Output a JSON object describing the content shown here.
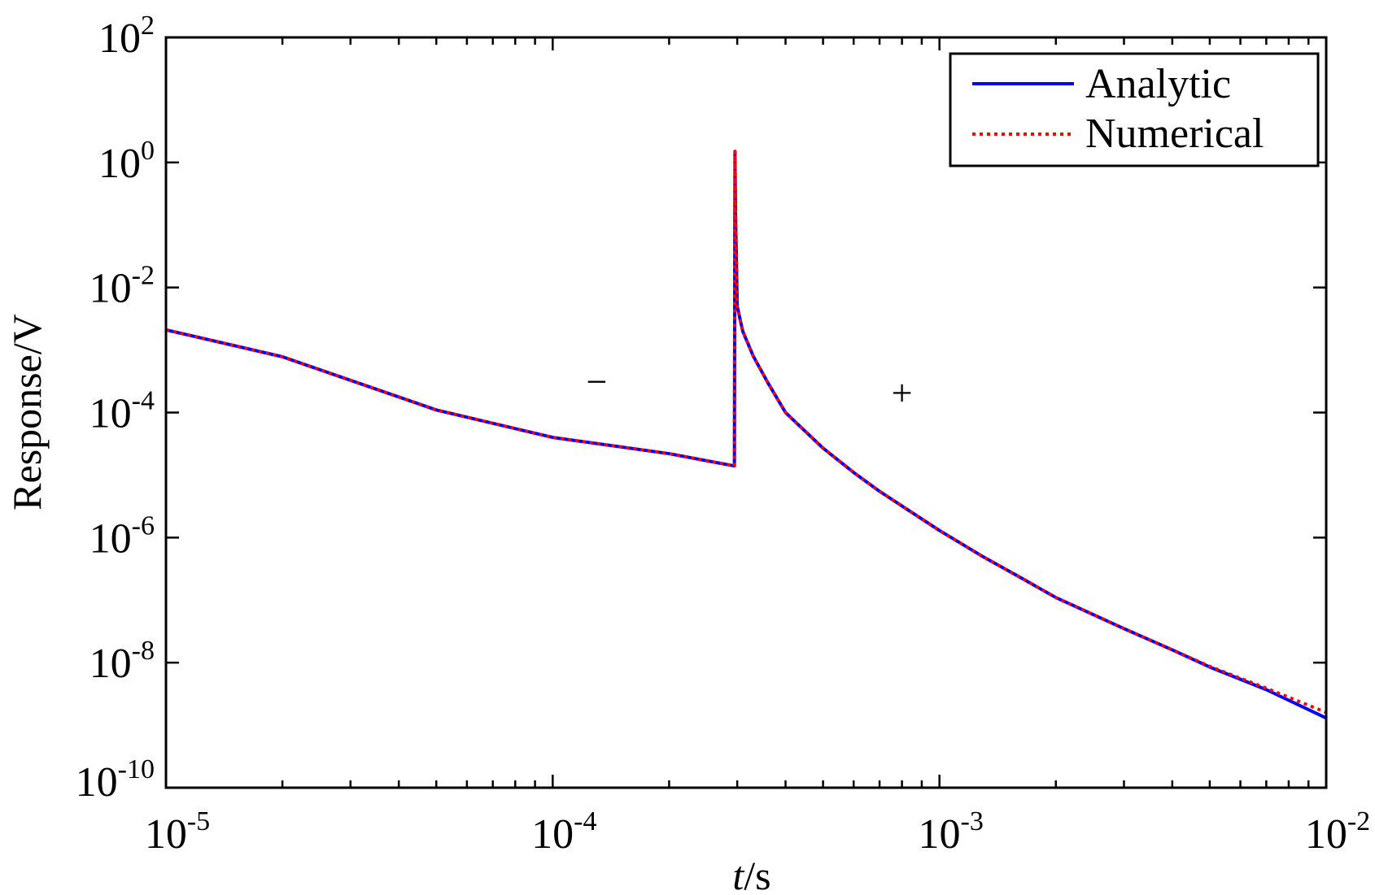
{
  "chart_data": {
    "type": "line",
    "title": "",
    "xlabel_italic": "t",
    "xlabel_unit": "/s",
    "ylabel": "Response/V",
    "xscale": "log",
    "yscale": "log",
    "xlim": [
      1e-05,
      0.01
    ],
    "ylim": [
      1e-10,
      100
    ],
    "grid": false,
    "legend_position": "top-right",
    "x_ticks": [
      {
        "base": "10",
        "exp": "-5"
      },
      {
        "base": "10",
        "exp": "-4"
      },
      {
        "base": "10",
        "exp": "-3"
      },
      {
        "base": "10",
        "exp": "-2"
      }
    ],
    "y_ticks": [
      {
        "base": "10",
        "exp": "-10"
      },
      {
        "base": "10",
        "exp": "-8"
      },
      {
        "base": "10",
        "exp": "-6"
      },
      {
        "base": "10",
        "exp": "-4"
      },
      {
        "base": "10",
        "exp": "-2"
      },
      {
        "base": "10",
        "exp": "0"
      },
      {
        "base": "10",
        "exp": "2"
      }
    ],
    "annotations": [
      {
        "text": "−",
        "x": 0.00013,
        "y": 0.0003
      },
      {
        "text": "+",
        "x": 0.0008,
        "y": 0.0002
      }
    ],
    "series": [
      {
        "name": "Analytic",
        "color": "#0000ff",
        "style": "solid",
        "x": [
          1e-05,
          2e-05,
          5e-05,
          0.0001,
          0.0002,
          0.000295,
          0.000296,
          0.000297,
          0.0003,
          0.00031,
          0.00033,
          0.00036,
          0.0004,
          0.00045,
          0.0005,
          0.0006,
          0.0007,
          0.0008,
          0.001,
          0.0013,
          0.0016,
          0.002,
          0.003,
          0.004,
          0.005,
          0.007,
          0.01
        ],
        "y": [
          0.0021,
          0.00078,
          0.00011,
          4e-05,
          2.2e-05,
          1.4e-05,
          1.5,
          0.15,
          0.005,
          0.002,
          0.0008,
          0.0003,
          0.0001,
          5e-05,
          2.7e-05,
          1.1e-05,
          5.5e-06,
          3.2e-06,
          1.3e-06,
          4.9e-07,
          2.4e-07,
          1.1e-07,
          3.5e-08,
          1.6e-08,
          8.5e-09,
          3.7e-09,
          1.3e-09
        ]
      },
      {
        "name": "Numerical",
        "color": "#ff0000",
        "style": "dotted",
        "x": [
          1e-05,
          2e-05,
          5e-05,
          0.0001,
          0.0002,
          0.000295,
          0.000296,
          0.000297,
          0.0003,
          0.00031,
          0.00033,
          0.00036,
          0.0004,
          0.00045,
          0.0005,
          0.0006,
          0.0007,
          0.0008,
          0.001,
          0.0013,
          0.0016,
          0.002,
          0.003,
          0.004,
          0.005,
          0.007,
          0.01
        ],
        "y": [
          0.0021,
          0.00078,
          0.00011,
          4e-05,
          2.2e-05,
          1.4e-05,
          1.5,
          0.15,
          0.005,
          0.002,
          0.0008,
          0.0003,
          0.0001,
          5e-05,
          2.7e-05,
          1.1e-05,
          5.5e-06,
          3.2e-06,
          1.3e-06,
          4.9e-07,
          2.4e-07,
          1.1e-07,
          3.5e-08,
          1.6e-08,
          8.7e-09,
          3.9e-09,
          1.6e-09
        ]
      }
    ]
  }
}
